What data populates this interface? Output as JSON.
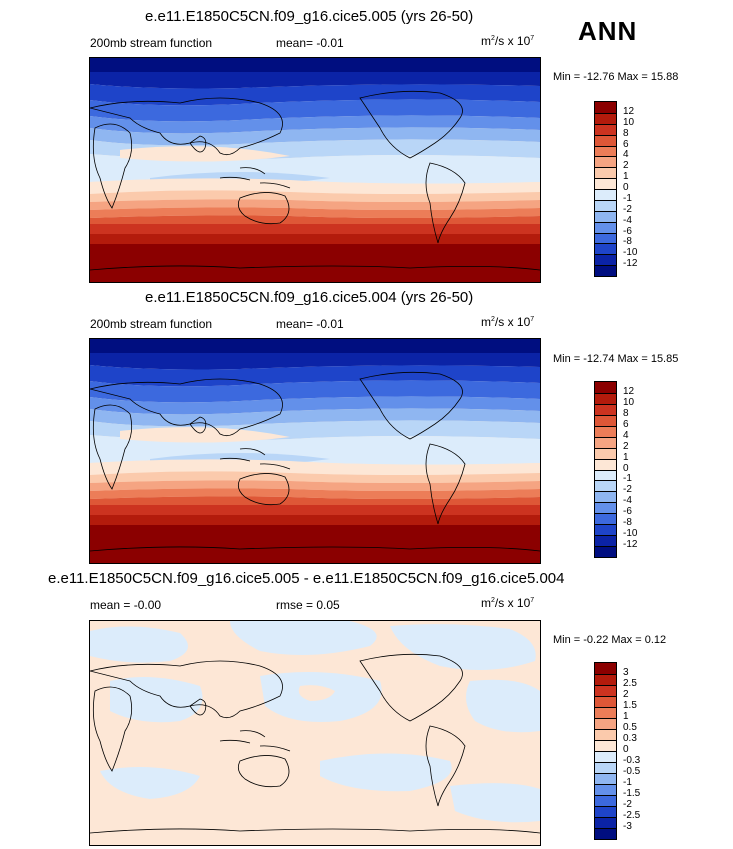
{
  "season_label": "ANN",
  "panels": [
    {
      "title": "e.e11.E1850C5CN.f09_g16.cice5.005 (yrs 26-50)",
      "left_label": "200mb stream function",
      "mid_label": "mean=  -0.01",
      "units_base": "m",
      "units_mid": "/s x 10",
      "units_sup2": "2",
      "units_sup7": "7",
      "minmax": "Min = -12.76 Max =  15.88",
      "colorbar_labels": [
        "12",
        "10",
        "8",
        "6",
        "4",
        "2",
        "1",
        "0",
        "-1",
        "-2",
        "-4",
        "-6",
        "-8",
        "-10",
        "-12"
      ],
      "colorbar_colors": [
        "#8b0000",
        "#b31b0c",
        "#cc3320",
        "#de5737",
        "#ec7d58",
        "#f5a482",
        "#fbcaac",
        "#fde7d6",
        "#dcecfb",
        "#b9d6f7",
        "#8fb6f1",
        "#6390ea",
        "#3c69de",
        "#1e44c9",
        "#0b23a6",
        "#000e80"
      ]
    },
    {
      "title": "e.e11.E1850C5CN.f09_g16.cice5.004 (yrs 26-50)",
      "left_label": "200mb stream function",
      "mid_label": "mean=  -0.01",
      "units_base": "m",
      "units_mid": "/s x 10",
      "units_sup2": "2",
      "units_sup7": "7",
      "minmax": "Min = -12.74 Max =  15.85",
      "colorbar_labels": [
        "12",
        "10",
        "8",
        "6",
        "4",
        "2",
        "1",
        "0",
        "-1",
        "-2",
        "-4",
        "-6",
        "-8",
        "-10",
        "-12"
      ],
      "colorbar_colors": [
        "#8b0000",
        "#b31b0c",
        "#cc3320",
        "#de5737",
        "#ec7d58",
        "#f5a482",
        "#fbcaac",
        "#fde7d6",
        "#dcecfb",
        "#b9d6f7",
        "#8fb6f1",
        "#6390ea",
        "#3c69de",
        "#1e44c9",
        "#0b23a6",
        "#000e80"
      ]
    },
    {
      "title": "e.e11.E1850C5CN.f09_g16.cice5.005 - e.e11.E1850C5CN.f09_g16.cice5.004",
      "left_label": "mean =  -0.00",
      "mid_label": "rmse =  0.05",
      "units_base": "m",
      "units_mid": "/s x 10",
      "units_sup2": "2",
      "units_sup7": "7",
      "minmax": "Min = -0.22 Max =  0.12",
      "colorbar_labels": [
        "3",
        "2.5",
        "2",
        "1.5",
        "1",
        "0.5",
        "0.3",
        "0",
        "-0.3",
        "-0.5",
        "-1",
        "-1.5",
        "-2",
        "-2.5",
        "-3"
      ],
      "colorbar_colors": [
        "#8b0000",
        "#b31b0c",
        "#cc3320",
        "#de5737",
        "#ec7d58",
        "#f5a482",
        "#fbcaac",
        "#fde7d6",
        "#dcecfb",
        "#b9d6f7",
        "#8fb6f1",
        "#6390ea",
        "#3c69de",
        "#1e44c9",
        "#0b23a6",
        "#000e80"
      ]
    }
  ],
  "colors": {
    "band_n1": "#000e80",
    "band_n2": "#0b23a6",
    "band_n3": "#1e44c9",
    "band_n4": "#3c69de",
    "band_n5": "#6390ea",
    "band_n6": "#8fb6f1",
    "band_n7": "#b9d6f7",
    "band_n8": "#dcecfb",
    "band_p1": "#fde7d6",
    "band_p2": "#fbcaac",
    "band_p3": "#f5a482",
    "band_p4": "#ec7d58",
    "band_p5": "#de5737",
    "band_p6": "#cc3320",
    "band_p7": "#b31b0c",
    "band_p8": "#8b0000"
  }
}
